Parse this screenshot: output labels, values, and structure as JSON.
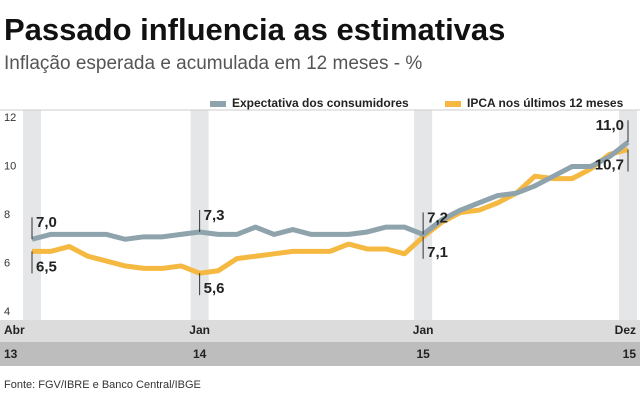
{
  "chart_data": {
    "type": "line",
    "title": "Passado influencia as estimativas",
    "subtitle": "Inflação esperada e acumulada em 12 meses - %",
    "source": "Fonte: FGV/IBRE e Banco Central/IBGE",
    "categories": [
      "Abr",
      null,
      null,
      null,
      null,
      null,
      null,
      null,
      null,
      "Jan",
      null,
      null,
      null,
      null,
      null,
      null,
      null,
      null,
      null,
      null,
      null,
      "Jan",
      null,
      null,
      null,
      null,
      null,
      null,
      null,
      null,
      null,
      null,
      "Dez"
    ],
    "years": [
      "13",
      null,
      null,
      null,
      null,
      null,
      null,
      null,
      null,
      "14",
      null,
      null,
      null,
      null,
      null,
      null,
      null,
      null,
      null,
      null,
      null,
      "15",
      null,
      null,
      null,
      null,
      null,
      null,
      null,
      null,
      null,
      null,
      "15"
    ],
    "series": [
      {
        "name": "Expectativa dos consumidores",
        "color": "#8fa3ad",
        "values": [
          7.0,
          7.2,
          7.2,
          7.2,
          7.2,
          7.0,
          7.1,
          7.1,
          7.2,
          7.3,
          7.2,
          7.2,
          7.5,
          7.2,
          7.4,
          7.2,
          7.2,
          7.2,
          7.3,
          7.5,
          7.5,
          7.2,
          7.8,
          8.2,
          8.5,
          8.8,
          8.9,
          9.2,
          9.6,
          10.0,
          10.0,
          10.4,
          11.0
        ],
        "value_labels": [
          "7,0",
          null,
          null,
          null,
          null,
          null,
          null,
          null,
          null,
          "7,3",
          null,
          null,
          null,
          null,
          null,
          null,
          null,
          null,
          null,
          null,
          null,
          "7,2",
          null,
          null,
          null,
          null,
          null,
          null,
          null,
          null,
          null,
          null,
          "11,0"
        ]
      },
      {
        "name": "IPCA nos últimos 12 meses",
        "color": "#f5b942",
        "values": [
          6.5,
          6.5,
          6.7,
          6.3,
          6.1,
          5.9,
          5.8,
          5.8,
          5.9,
          5.6,
          5.7,
          6.2,
          6.3,
          6.4,
          6.5,
          6.5,
          6.5,
          6.8,
          6.6,
          6.6,
          6.4,
          7.1,
          7.7,
          8.1,
          8.2,
          8.5,
          8.9,
          9.6,
          9.5,
          9.5,
          9.9,
          10.5,
          10.7
        ],
        "value_labels": [
          "6,5",
          null,
          null,
          null,
          null,
          null,
          null,
          null,
          null,
          "5,6",
          null,
          null,
          null,
          null,
          null,
          null,
          null,
          null,
          null,
          null,
          null,
          "7,1",
          null,
          null,
          null,
          null,
          null,
          null,
          null,
          null,
          null,
          null,
          "10,7"
        ]
      }
    ],
    "ylim": [
      4,
      12
    ],
    "yticks": [
      4,
      6,
      8,
      10,
      12
    ],
    "grid": false,
    "legend": "top"
  }
}
